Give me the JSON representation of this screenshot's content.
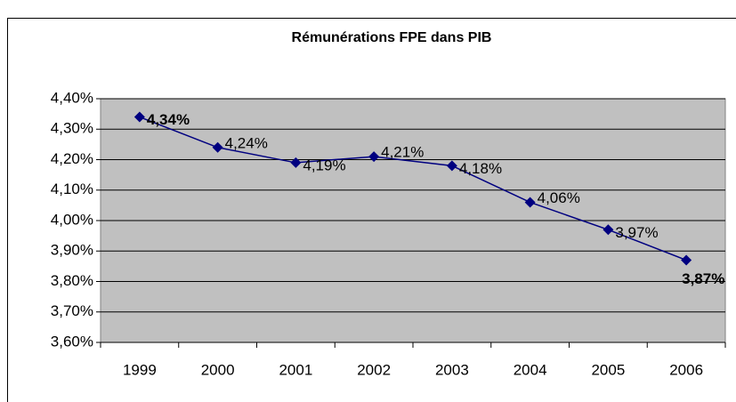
{
  "chart_data": {
    "type": "line",
    "title": "Rémunérations FPE dans PIB",
    "categories": [
      "1999",
      "2000",
      "2001",
      "2002",
      "2003",
      "2004",
      "2005",
      "2006"
    ],
    "values": [
      4.34,
      4.24,
      4.19,
      4.21,
      4.18,
      4.06,
      3.97,
      3.87
    ],
    "value_labels": [
      "4,34%",
      "4,24%",
      "4,19%",
      "4,21%",
      "4,18%",
      "4,06%",
      "3,97%",
      "3,87%"
    ],
    "color": "#000080",
    "ylim": [
      3.6,
      4.4
    ],
    "yticks": [
      {
        "value": 3.6,
        "label": "3,60%"
      },
      {
        "value": 3.7,
        "label": "3,70%"
      },
      {
        "value": 3.8,
        "label": "3,80%"
      },
      {
        "value": 3.9,
        "label": "3,90%"
      },
      {
        "value": 4.0,
        "label": "4,00%"
      },
      {
        "value": 4.1,
        "label": "4,10%"
      },
      {
        "value": 4.2,
        "label": "4,20%"
      },
      {
        "value": 4.3,
        "label": "4,30%"
      },
      {
        "value": 4.4,
        "label": "4,40%"
      }
    ],
    "grid": true
  }
}
